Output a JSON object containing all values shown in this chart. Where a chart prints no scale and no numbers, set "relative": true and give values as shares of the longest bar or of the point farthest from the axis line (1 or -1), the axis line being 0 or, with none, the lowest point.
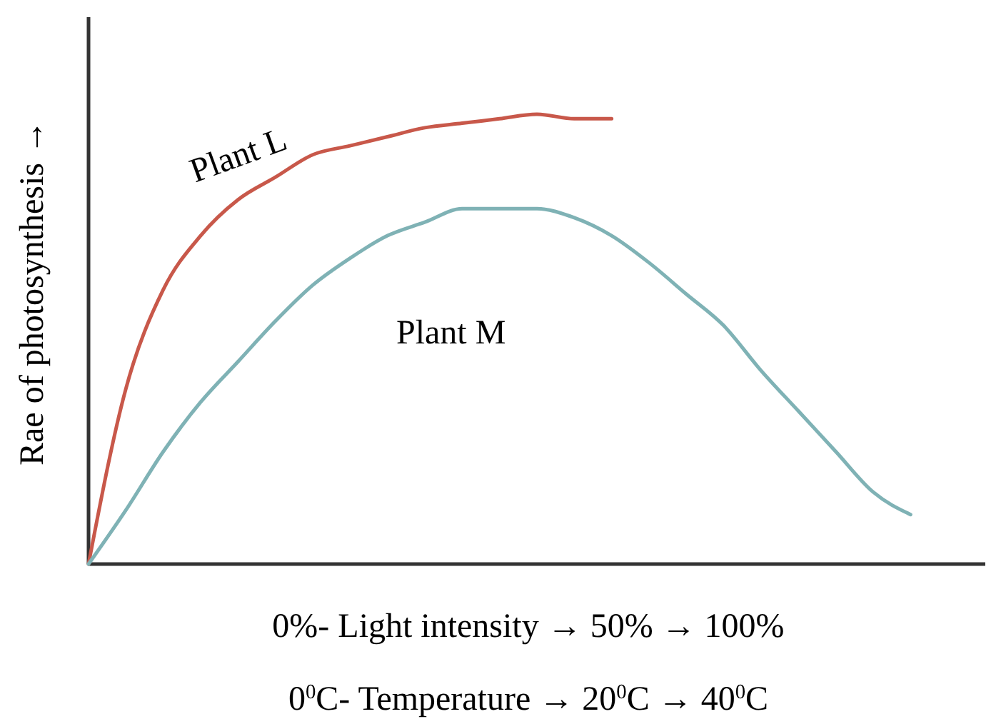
{
  "chart_data": {
    "type": "line",
    "relative": true,
    "ylabel": "Rae of photosynthesis →",
    "xlabel": "0%- Light intensity → 50% → 100%",
    "annotations": [
      "0$^{0}$C- Temperature → 20$^{0}$C → 40$^{0}$C"
    ],
    "categories": [
      null,
      null,
      null,
      null,
      null,
      null,
      null,
      null,
      null,
      null,
      null,
      null,
      null,
      null,
      null,
      null,
      null,
      null,
      null,
      null,
      null,
      null,
      null,
      null,
      null
    ],
    "grid": false,
    "marker": "none",
    "line_style": "solid",
    "series": [
      {
        "name": "Plant L",
        "color": "#c8584a",
        "values": [
          0,
          0.39,
          0.61,
          0.73,
          0.81,
          0.86,
          0.91,
          0.93,
          0.95,
          0.97,
          0.98,
          0.99,
          1,
          0.99,
          0.99,
          null,
          null,
          null,
          null,
          null,
          null,
          null,
          null,
          null,
          null
        ]
      },
      {
        "name": "Plant M",
        "color": "#7fb2b5",
        "values": [
          0,
          0.12,
          0.25,
          0.36,
          0.45,
          0.54,
          0.62,
          0.68,
          0.73,
          0.76,
          0.79,
          0.79,
          0.79,
          0.77,
          0.73,
          0.67,
          0.6,
          0.53,
          0.43,
          0.34,
          0.25,
          0.16,
          0.11,
          null,
          null
        ]
      }
    ]
  }
}
